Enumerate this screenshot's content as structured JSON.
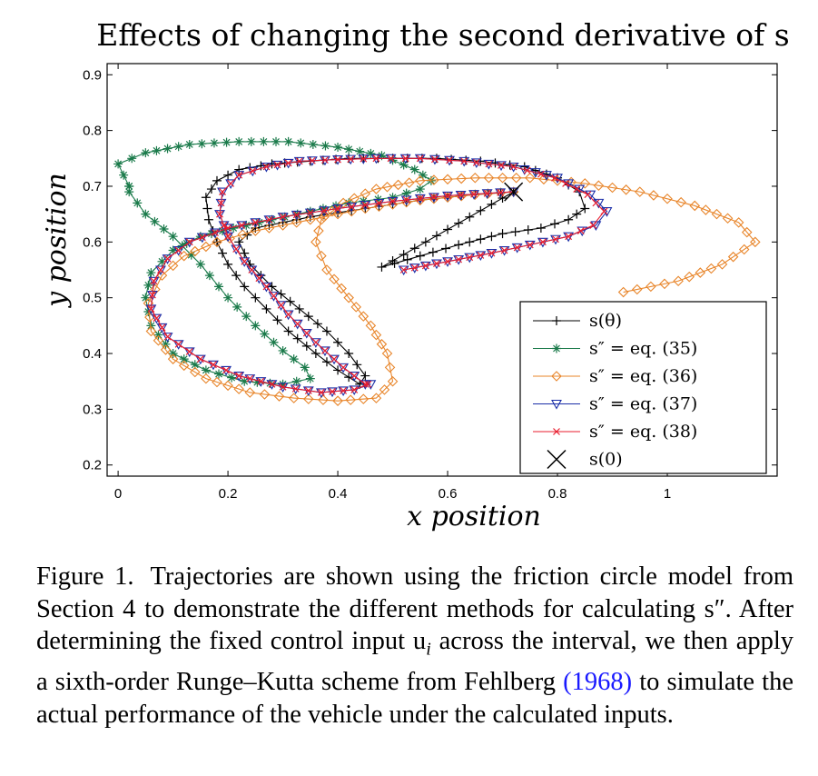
{
  "chart_data": {
    "type": "line",
    "title": "Effects of changing the second derivative of s",
    "xlabel": "x position",
    "ylabel": "y position",
    "xlim": [
      -0.02,
      1.2
    ],
    "ylim": [
      0.18,
      0.92
    ],
    "xticks": [
      0,
      0.2,
      0.4,
      0.6,
      0.8,
      1
    ],
    "yticks": [
      0.2,
      0.3,
      0.4,
      0.5,
      0.6,
      0.7,
      0.8,
      0.9
    ],
    "legend_position": "bottom-right",
    "grid": false,
    "series": [
      {
        "name": "s(θ)",
        "color": "#000000",
        "marker": "plus",
        "points": [
          [
            0.72,
            0.69
          ],
          [
            0.48,
            0.555
          ],
          [
            0.55,
            0.575
          ],
          [
            0.62,
            0.595
          ],
          [
            0.7,
            0.615
          ],
          [
            0.77,
            0.625
          ],
          [
            0.82,
            0.64
          ],
          [
            0.85,
            0.66
          ],
          [
            0.84,
            0.69
          ],
          [
            0.8,
            0.715
          ],
          [
            0.74,
            0.735
          ],
          [
            0.66,
            0.745
          ],
          [
            0.58,
            0.75
          ],
          [
            0.5,
            0.75
          ],
          [
            0.42,
            0.75
          ],
          [
            0.35,
            0.745
          ],
          [
            0.28,
            0.74
          ],
          [
            0.22,
            0.73
          ],
          [
            0.18,
            0.71
          ],
          [
            0.16,
            0.68
          ],
          [
            0.165,
            0.64
          ],
          [
            0.18,
            0.6
          ],
          [
            0.2,
            0.56
          ],
          [
            0.23,
            0.52
          ],
          [
            0.27,
            0.48
          ],
          [
            0.31,
            0.44
          ],
          [
            0.36,
            0.4
          ],
          [
            0.4,
            0.37
          ],
          [
            0.44,
            0.345
          ],
          [
            0.45,
            0.36
          ],
          [
            0.42,
            0.4
          ],
          [
            0.38,
            0.44
          ],
          [
            0.33,
            0.48
          ],
          [
            0.28,
            0.52
          ],
          [
            0.24,
            0.56
          ],
          [
            0.22,
            0.6
          ],
          [
            0.25,
            0.625
          ],
          [
            0.35,
            0.645
          ],
          [
            0.45,
            0.66
          ],
          [
            0.55,
            0.675
          ],
          [
            0.65,
            0.685
          ],
          [
            0.72,
            0.69
          ]
        ]
      },
      {
        "name": "s″ = eq. (35)",
        "color": "#1a7a4a",
        "marker": "star",
        "points": [
          [
            0.02,
            0.7
          ],
          [
            0.0,
            0.74
          ],
          [
            0.05,
            0.76
          ],
          [
            0.13,
            0.775
          ],
          [
            0.22,
            0.78
          ],
          [
            0.31,
            0.78
          ],
          [
            0.4,
            0.77
          ],
          [
            0.48,
            0.755
          ],
          [
            0.54,
            0.73
          ],
          [
            0.57,
            0.71
          ],
          [
            0.55,
            0.695
          ],
          [
            0.5,
            0.68
          ],
          [
            0.42,
            0.67
          ],
          [
            0.35,
            0.655
          ],
          [
            0.28,
            0.64
          ],
          [
            0.21,
            0.625
          ],
          [
            0.15,
            0.61
          ],
          [
            0.1,
            0.585
          ],
          [
            0.06,
            0.545
          ],
          [
            0.05,
            0.5
          ],
          [
            0.06,
            0.45
          ],
          [
            0.1,
            0.4
          ],
          [
            0.16,
            0.37
          ],
          [
            0.23,
            0.35
          ],
          [
            0.3,
            0.345
          ],
          [
            0.35,
            0.355
          ],
          [
            0.34,
            0.375
          ],
          [
            0.3,
            0.405
          ],
          [
            0.25,
            0.45
          ],
          [
            0.2,
            0.5
          ],
          [
            0.15,
            0.56
          ],
          [
            0.1,
            0.61
          ],
          [
            0.05,
            0.65
          ],
          [
            0.02,
            0.69
          ],
          [
            0.02,
            0.7
          ]
        ]
      },
      {
        "name": "s″ = eq. (36)",
        "color": "#e8852a",
        "marker": "diamond",
        "points": [
          [
            0.92,
            0.51
          ],
          [
            1.02,
            0.53
          ],
          [
            1.1,
            0.56
          ],
          [
            1.16,
            0.6
          ],
          [
            1.13,
            0.635
          ],
          [
            1.05,
            0.665
          ],
          [
            0.95,
            0.69
          ],
          [
            0.85,
            0.705
          ],
          [
            0.75,
            0.715
          ],
          [
            0.65,
            0.715
          ],
          [
            0.55,
            0.71
          ],
          [
            0.47,
            0.695
          ],
          [
            0.41,
            0.67
          ],
          [
            0.37,
            0.64
          ],
          [
            0.36,
            0.6
          ],
          [
            0.38,
            0.55
          ],
          [
            0.42,
            0.5
          ],
          [
            0.46,
            0.45
          ],
          [
            0.49,
            0.4
          ],
          [
            0.5,
            0.35
          ],
          [
            0.47,
            0.32
          ],
          [
            0.4,
            0.315
          ],
          [
            0.32,
            0.32
          ],
          [
            0.24,
            0.33
          ],
          [
            0.16,
            0.355
          ],
          [
            0.1,
            0.39
          ],
          [
            0.06,
            0.44
          ],
          [
            0.055,
            0.49
          ],
          [
            0.08,
            0.54
          ],
          [
            0.12,
            0.575
          ],
          [
            0.18,
            0.6
          ],
          [
            0.25,
            0.62
          ],
          [
            0.35,
            0.64
          ],
          [
            0.45,
            0.66
          ],
          [
            0.55,
            0.675
          ],
          [
            0.65,
            0.685
          ],
          [
            0.72,
            0.69
          ]
        ]
      },
      {
        "name": "s″ = eq. (37)",
        "color": "#1a2ea8",
        "marker": "triangle-down",
        "points": [
          [
            0.52,
            0.55
          ],
          [
            0.6,
            0.565
          ],
          [
            0.68,
            0.58
          ],
          [
            0.75,
            0.595
          ],
          [
            0.82,
            0.61
          ],
          [
            0.87,
            0.63
          ],
          [
            0.89,
            0.655
          ],
          [
            0.86,
            0.685
          ],
          [
            0.8,
            0.715
          ],
          [
            0.72,
            0.735
          ],
          [
            0.63,
            0.745
          ],
          [
            0.55,
            0.75
          ],
          [
            0.47,
            0.75
          ],
          [
            0.4,
            0.748
          ],
          [
            0.33,
            0.745
          ],
          [
            0.27,
            0.735
          ],
          [
            0.22,
            0.72
          ],
          [
            0.19,
            0.69
          ],
          [
            0.185,
            0.65
          ],
          [
            0.2,
            0.61
          ],
          [
            0.23,
            0.565
          ],
          [
            0.27,
            0.52
          ],
          [
            0.31,
            0.47
          ],
          [
            0.36,
            0.42
          ],
          [
            0.41,
            0.375
          ],
          [
            0.45,
            0.345
          ],
          [
            0.46,
            0.345
          ],
          [
            0.43,
            0.335
          ],
          [
            0.37,
            0.33
          ],
          [
            0.3,
            0.34
          ],
          [
            0.22,
            0.36
          ],
          [
            0.15,
            0.39
          ],
          [
            0.09,
            0.43
          ],
          [
            0.06,
            0.48
          ],
          [
            0.065,
            0.53
          ],
          [
            0.09,
            0.57
          ],
          [
            0.13,
            0.6
          ],
          [
            0.2,
            0.625
          ],
          [
            0.3,
            0.645
          ],
          [
            0.4,
            0.66
          ],
          [
            0.5,
            0.673
          ],
          [
            0.6,
            0.683
          ],
          [
            0.72,
            0.69
          ]
        ]
      },
      {
        "name": "s″ = eq. (38)",
        "color": "#e81c2e",
        "marker": "x",
        "points": [
          [
            0.52,
            0.55
          ],
          [
            0.6,
            0.565
          ],
          [
            0.68,
            0.58
          ],
          [
            0.75,
            0.595
          ],
          [
            0.82,
            0.61
          ],
          [
            0.865,
            0.63
          ],
          [
            0.885,
            0.655
          ],
          [
            0.855,
            0.685
          ],
          [
            0.795,
            0.715
          ],
          [
            0.72,
            0.735
          ],
          [
            0.63,
            0.745
          ],
          [
            0.55,
            0.75
          ],
          [
            0.47,
            0.75
          ],
          [
            0.4,
            0.748
          ],
          [
            0.33,
            0.745
          ],
          [
            0.27,
            0.735
          ],
          [
            0.22,
            0.72
          ],
          [
            0.19,
            0.69
          ],
          [
            0.185,
            0.65
          ],
          [
            0.2,
            0.61
          ],
          [
            0.23,
            0.565
          ],
          [
            0.27,
            0.52
          ],
          [
            0.31,
            0.47
          ],
          [
            0.36,
            0.42
          ],
          [
            0.41,
            0.375
          ],
          [
            0.45,
            0.345
          ],
          [
            0.455,
            0.345
          ],
          [
            0.43,
            0.335
          ],
          [
            0.37,
            0.33
          ],
          [
            0.3,
            0.34
          ],
          [
            0.22,
            0.36
          ],
          [
            0.15,
            0.39
          ],
          [
            0.09,
            0.43
          ],
          [
            0.06,
            0.48
          ],
          [
            0.065,
            0.53
          ],
          [
            0.09,
            0.57
          ],
          [
            0.13,
            0.6
          ],
          [
            0.2,
            0.625
          ],
          [
            0.3,
            0.645
          ],
          [
            0.4,
            0.66
          ],
          [
            0.5,
            0.673
          ],
          [
            0.6,
            0.683
          ],
          [
            0.72,
            0.69
          ]
        ]
      },
      {
        "name": "s(0)",
        "color": "#000000",
        "marker": "big-x",
        "points": [
          [
            0.72,
            0.69
          ]
        ]
      }
    ]
  },
  "caption": {
    "label": "Figure 1.",
    "text_before_ref": "Trajectories are shown using the friction circle model from Section 4 to demonstrate the different methods for calculating s″. After determining the fixed control input u",
    "subscript": "i",
    "text_mid": " across the interval, we then apply a sixth-order Runge–Kutta scheme from Fehlberg ",
    "ref": "(1968)",
    "text_after_ref": " to simulate the actual performance of the vehicle under the calculated inputs."
  }
}
